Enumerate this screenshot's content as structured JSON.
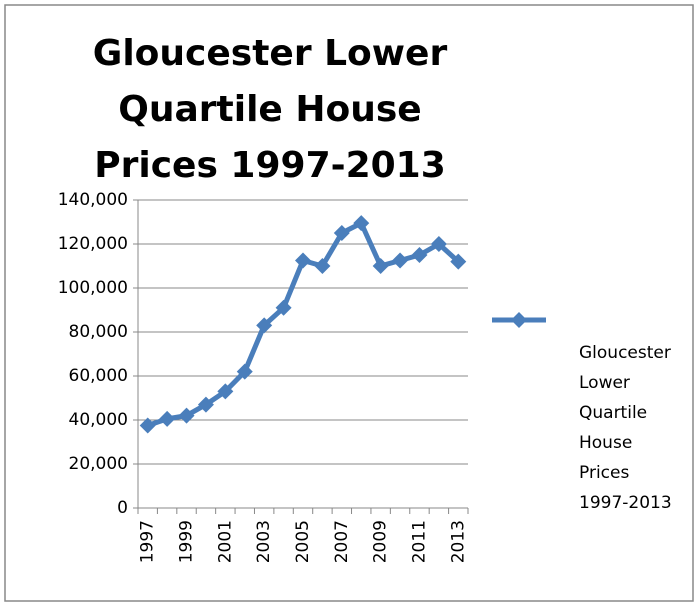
{
  "chart_data": {
    "type": "line",
    "title": "Gloucester Lower Quartile House Prices 1997-2013",
    "categories": [
      "1997",
      null,
      "1999",
      null,
      "2001",
      null,
      "2003",
      null,
      "2005",
      null,
      "2007",
      null,
      "2009",
      null,
      "2011",
      null,
      "2013"
    ],
    "series": [
      {
        "name": "Gloucester Lower Quartile House Prices 1997-2013",
        "color": "#4a7ebb",
        "values": [
          37500,
          40500,
          42000,
          47000,
          53000,
          62000,
          83000,
          91000,
          112500,
          110000,
          125000,
          129500,
          110000,
          112500,
          115000,
          120000,
          112000
        ]
      }
    ],
    "ylim": [
      0,
      140000
    ],
    "yticks": [
      0,
      {
        "value": 20000,
        "label": "20,000"
      },
      {
        "value": 40000,
        "label": "40,000"
      },
      {
        "value": 60000,
        "label": "60,000"
      },
      {
        "value": 80000,
        "label": "80,000"
      },
      {
        "value": 100000,
        "label": "100,000"
      },
      {
        "value": 120000,
        "label": "120,000"
      },
      {
        "value": 140000,
        "label": "140,000"
      }
    ],
    "grid": true,
    "legend": "right"
  }
}
